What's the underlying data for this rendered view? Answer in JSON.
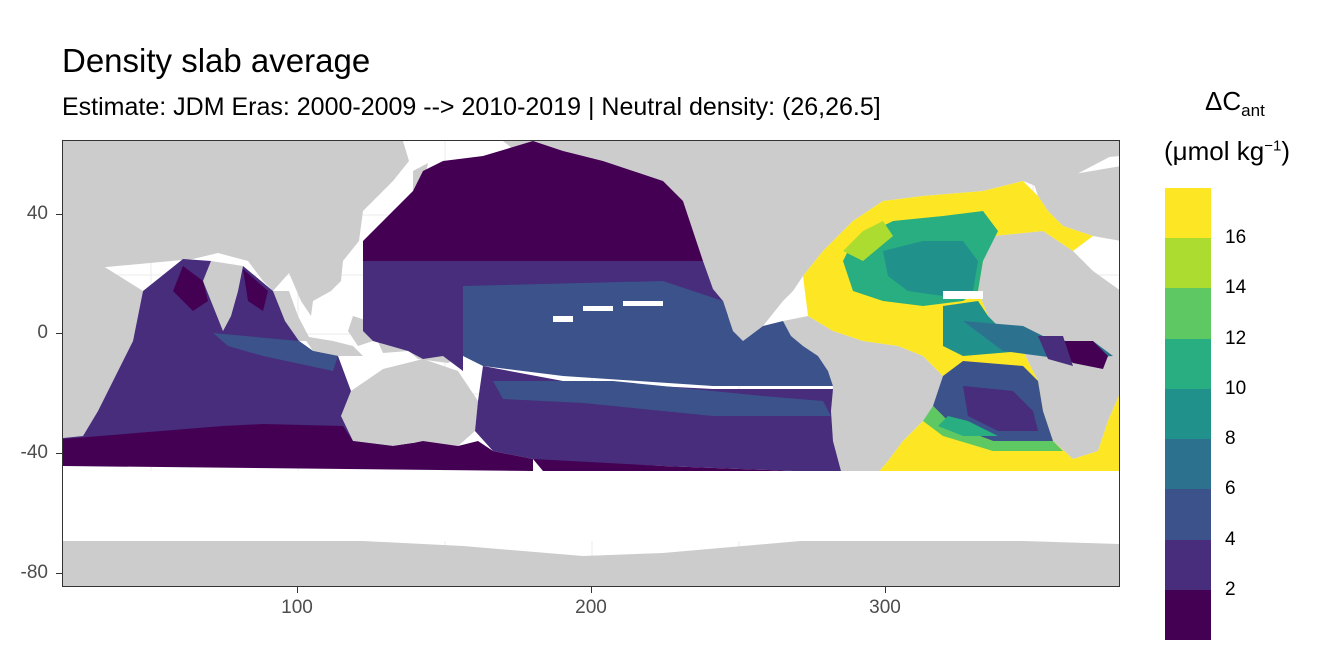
{
  "title": "Density slab average",
  "subtitle": "Estimate: JDM Eras: 2000-2009 --> 2010-2019 | Neutral density: (26,26.5]",
  "legend": {
    "title_main": "ΔC",
    "title_sub": "ant",
    "unit_prefix": "(μmol kg",
    "unit_sup": "−1",
    "unit_suffix": ")",
    "labels": [
      "2",
      "4",
      "6",
      "8",
      "10",
      "12",
      "14",
      "16"
    ],
    "breaks": [
      0,
      2,
      4,
      6,
      8,
      10,
      12,
      14,
      16,
      18
    ],
    "colors": [
      "#440154",
      "#472d7b",
      "#3b528b",
      "#2c728e",
      "#21918c",
      "#28ae80",
      "#5ec962",
      "#addc30",
      "#fde725"
    ]
  },
  "axes": {
    "x_ticks": [
      "100",
      "200",
      "300"
    ],
    "y_ticks": [
      "40",
      "0",
      "-40",
      "-80"
    ]
  },
  "colors": {
    "land": "#cccccc",
    "ocean_nodata": "#ffffff",
    "grid": "#ebebeb"
  },
  "chart_data": {
    "type": "heatmap",
    "title": "Density slab average",
    "subtitle": "Estimate: JDM Eras: 2000-2009 --> 2010-2019 | Neutral density: (26,26.5]",
    "xlabel": "",
    "ylabel": "",
    "xlim": [
      20,
      380
    ],
    "ylim": [
      -85,
      65
    ],
    "x_ticks": [
      100,
      200,
      300
    ],
    "y_ticks": [
      40,
      0,
      -40,
      -80
    ],
    "legend_title": "ΔCant (μmol kg−1)",
    "color_scale": "viridis (binned)",
    "bins": [
      0,
      2,
      4,
      6,
      8,
      10,
      12,
      14,
      16,
      18
    ],
    "regions": [
      {
        "name": "North Pacific (north of ~25N)",
        "bin": "0-2"
      },
      {
        "name": "Subtropical North Pacific",
        "bin": "2-4"
      },
      {
        "name": "Equatorial Pacific band",
        "bin": "4-6"
      },
      {
        "name": "South Pacific subtropics",
        "bin": "4-6"
      },
      {
        "name": "South Pacific south of ~30S",
        "bin": "2-4"
      },
      {
        "name": "Indian Ocean (most)",
        "bin": "2-4"
      },
      {
        "name": "Southern Indian / Pacific near 40S",
        "bin": "0-2"
      },
      {
        "name": "Arabian Sea / Bay of Bengal",
        "bin": "0-2"
      },
      {
        "name": "North Atlantic subtropical gyre",
        "bin": "10-14"
      },
      {
        "name": "North Atlantic margins",
        "bin": ">16"
      },
      {
        "name": "Tropical Atlantic",
        "bin": "8-12"
      },
      {
        "name": "Gulf of Guinea",
        "bin": "0-4"
      },
      {
        "name": "South Atlantic gyre",
        "bin": "4-8"
      },
      {
        "name": "South Atlantic 35-45S",
        "bin": ">16"
      }
    ]
  }
}
